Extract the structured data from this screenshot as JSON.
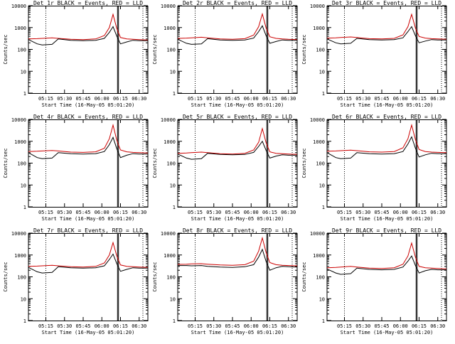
{
  "chart_data": [
    {
      "type": "line",
      "title": "Det 1r BLACK = Events, RED = LLD",
      "xlabel": "Start Time (16-May-05 05:01:20)",
      "ylabel": "Counts/sec",
      "yscale": "log",
      "ylim": [
        1,
        10000
      ],
      "x_ticks": [
        "05:15",
        "05:30",
        "05:45",
        "06:00",
        "06:15",
        "06:30"
      ],
      "y_ticks": [
        "1",
        "10",
        "100",
        "1000",
        "10000"
      ],
      "legend": "none",
      "grid": "off",
      "x": [
        "05:01",
        "05:08",
        "05:12",
        "05:20",
        "05:25",
        "05:35",
        "05:45",
        "05:55",
        "06:02",
        "06:06",
        "06:09",
        "06:12",
        "06:15",
        "06:20",
        "06:25",
        "06:30",
        "06:37"
      ],
      "series": [
        {
          "color": "#cc0000",
          "values": [
            300,
            310,
            320,
            340,
            320,
            290,
            280,
            300,
            430,
            1000,
            4000,
            900,
            350,
            300,
            290,
            280,
            270
          ]
        },
        {
          "color": "#000000",
          "values": [
            280,
            180,
            160,
            170,
            300,
            260,
            250,
            260,
            320,
            600,
            1100,
            400,
            180,
            220,
            260,
            250,
            250
          ]
        }
      ]
    },
    {
      "type": "line",
      "title": "Det 2r BLACK = Events, RED = LLD",
      "xlabel": "Start Time (16-May-05 05:01:20)",
      "ylabel": "Counts/sec",
      "yscale": "log",
      "ylim": [
        1,
        10000
      ],
      "x_ticks": [
        "05:15",
        "05:30",
        "05:45",
        "06:00",
        "06:15",
        "06:30"
      ],
      "y_ticks": [
        "1",
        "10",
        "100",
        "1000",
        "10000"
      ],
      "legend": "none",
      "grid": "off",
      "x": [
        "05:01",
        "05:08",
        "05:12",
        "05:20",
        "05:25",
        "05:35",
        "05:45",
        "05:55",
        "06:02",
        "06:06",
        "06:09",
        "06:12",
        "06:15",
        "06:20",
        "06:25",
        "06:30",
        "06:37"
      ],
      "series": [
        {
          "color": "#cc0000",
          "values": [
            320,
            330,
            340,
            360,
            340,
            300,
            290,
            310,
            450,
            1100,
            4200,
            950,
            380,
            320,
            300,
            290,
            280
          ]
        },
        {
          "color": "#000000",
          "values": [
            290,
            190,
            170,
            180,
            310,
            270,
            260,
            270,
            330,
            650,
            1200,
            420,
            190,
            230,
            270,
            260,
            260
          ]
        }
      ]
    },
    {
      "type": "line",
      "title": "Det 3r BLACK = Events, RED = LLD",
      "xlabel": "Start Time (16-May-05 05:01:20)",
      "ylabel": "Counts/sec",
      "yscale": "log",
      "ylim": [
        1,
        10000
      ],
      "x_ticks": [
        "05:15",
        "05:30",
        "05:45",
        "06:00",
        "06:15",
        "06:30"
      ],
      "y_ticks": [
        "1",
        "10",
        "100",
        "1000",
        "10000"
      ],
      "legend": "none",
      "grid": "off",
      "x": [
        "05:01",
        "05:08",
        "05:12",
        "05:20",
        "05:25",
        "05:35",
        "05:45",
        "05:55",
        "06:02",
        "06:06",
        "06:09",
        "06:12",
        "06:15",
        "06:20",
        "06:25",
        "06:30",
        "06:37"
      ],
      "series": [
        {
          "color": "#cc0000",
          "values": [
            330,
            340,
            350,
            370,
            350,
            310,
            300,
            320,
            460,
            1100,
            4000,
            950,
            390,
            330,
            310,
            300,
            290
          ]
        },
        {
          "color": "#000000",
          "values": [
            300,
            200,
            180,
            190,
            320,
            280,
            270,
            280,
            340,
            650,
            1100,
            420,
            200,
            240,
            280,
            270,
            270
          ]
        }
      ]
    },
    {
      "type": "line",
      "title": "Det 4r BLACK = Events, RED = LLD",
      "xlabel": "Start Time (16-May-05 05:01:20)",
      "ylabel": "Counts/sec",
      "yscale": "log",
      "ylim": [
        1,
        10000
      ],
      "x_ticks": [
        "05:15",
        "05:30",
        "05:45",
        "06:00",
        "06:15",
        "06:30"
      ],
      "y_ticks": [
        "1",
        "10",
        "100",
        "1000",
        "10000"
      ],
      "legend": "none",
      "grid": "off",
      "x": [
        "05:01",
        "05:08",
        "05:12",
        "05:20",
        "05:25",
        "05:35",
        "05:45",
        "05:55",
        "06:02",
        "06:06",
        "06:09",
        "06:12",
        "06:15",
        "06:20",
        "06:25",
        "06:30",
        "06:37"
      ],
      "series": [
        {
          "color": "#cc0000",
          "values": [
            340,
            350,
            360,
            380,
            360,
            320,
            310,
            330,
            480,
            1300,
            5500,
            1100,
            400,
            330,
            310,
            300,
            290
          ]
        },
        {
          "color": "#000000",
          "values": [
            300,
            180,
            160,
            170,
            300,
            270,
            260,
            270,
            340,
            700,
            1500,
            450,
            180,
            230,
            270,
            260,
            260
          ]
        }
      ]
    },
    {
      "type": "line",
      "title": "Det 5r BLACK = Events, RED = LLD",
      "xlabel": "Start Time (16-May-05 05:01:20)",
      "ylabel": "Counts/sec",
      "yscale": "log",
      "ylim": [
        1,
        10000
      ],
      "x_ticks": [
        "05:15",
        "05:30",
        "05:45",
        "06:00",
        "06:15",
        "06:30"
      ],
      "y_ticks": [
        "1",
        "10",
        "100",
        "1000",
        "10000"
      ],
      "legend": "none",
      "grid": "off",
      "x": [
        "05:01",
        "05:08",
        "05:12",
        "05:20",
        "05:25",
        "05:35",
        "05:45",
        "05:55",
        "06:02",
        "06:06",
        "06:09",
        "06:12",
        "06:15",
        "06:20",
        "06:25",
        "06:30",
        "06:37"
      ],
      "series": [
        {
          "color": "#cc0000",
          "values": [
            280,
            290,
            300,
            320,
            300,
            270,
            260,
            280,
            400,
            900,
            3800,
            850,
            330,
            280,
            270,
            260,
            250
          ]
        },
        {
          "color": "#000000",
          "values": [
            260,
            170,
            150,
            160,
            280,
            250,
            240,
            250,
            310,
            580,
            1000,
            380,
            170,
            210,
            240,
            230,
            230
          ]
        }
      ]
    },
    {
      "type": "line",
      "title": "Det 6r BLACK = Events, RED = LLD",
      "xlabel": "Start Time (16-May-05 05:01:20)",
      "ylabel": "Counts/sec",
      "yscale": "log",
      "ylim": [
        1,
        10000
      ],
      "x_ticks": [
        "05:15",
        "05:30",
        "05:45",
        "06:00",
        "06:15",
        "06:30"
      ],
      "y_ticks": [
        "1",
        "10",
        "100",
        "1000",
        "10000"
      ],
      "legend": "none",
      "grid": "off",
      "x": [
        "05:01",
        "05:08",
        "05:12",
        "05:20",
        "05:25",
        "05:35",
        "05:45",
        "05:55",
        "06:02",
        "06:06",
        "06:09",
        "06:12",
        "06:15",
        "06:20",
        "06:25",
        "06:30",
        "06:37"
      ],
      "series": [
        {
          "color": "#cc0000",
          "values": [
            350,
            360,
            370,
            390,
            370,
            330,
            320,
            340,
            500,
            1300,
            5500,
            1200,
            420,
            340,
            320,
            310,
            300
          ]
        },
        {
          "color": "#000000",
          "values": [
            300,
            180,
            160,
            170,
            300,
            270,
            260,
            270,
            340,
            750,
            1600,
            480,
            190,
            240,
            280,
            270,
            270
          ]
        }
      ]
    },
    {
      "type": "line",
      "title": "Det 7r BLACK = Events, RED = LLD",
      "xlabel": "Start Time (16-May-05 05:01:20)",
      "ylabel": "Counts/sec",
      "yscale": "log",
      "ylim": [
        1,
        10000
      ],
      "x_ticks": [
        "05:15",
        "05:30",
        "05:45",
        "06:00",
        "06:15",
        "06:30"
      ],
      "y_ticks": [
        "1",
        "10",
        "100",
        "1000",
        "10000"
      ],
      "legend": "none",
      "grid": "off",
      "x": [
        "05:01",
        "05:08",
        "05:12",
        "05:20",
        "05:25",
        "05:35",
        "05:45",
        "05:55",
        "06:02",
        "06:06",
        "06:09",
        "06:12",
        "06:15",
        "06:20",
        "06:25",
        "06:30",
        "06:37"
      ],
      "series": [
        {
          "color": "#cc0000",
          "values": [
            300,
            310,
            320,
            340,
            320,
            290,
            280,
            300,
            430,
            1000,
            3700,
            900,
            350,
            300,
            290,
            280,
            270
          ]
        },
        {
          "color": "#000000",
          "values": [
            270,
            170,
            150,
            160,
            290,
            260,
            250,
            260,
            320,
            620,
            1100,
            400,
            180,
            220,
            260,
            250,
            250
          ]
        }
      ]
    },
    {
      "type": "line",
      "title": "Det 8r BLACK = Events, RED = LLD",
      "xlabel": "Start Time (16-May-05 05:01:20)",
      "ylabel": "Counts/sec",
      "yscale": "log",
      "ylim": [
        1,
        10000
      ],
      "x_ticks": [
        "05:15",
        "05:30",
        "05:45",
        "06:00",
        "06:15",
        "06:30"
      ],
      "y_ticks": [
        "1",
        "10",
        "100",
        "1000",
        "10000"
      ],
      "legend": "none",
      "grid": "off",
      "x": [
        "05:01",
        "05:08",
        "05:12",
        "05:20",
        "05:25",
        "05:35",
        "05:45",
        "05:55",
        "06:02",
        "06:06",
        "06:09",
        "06:12",
        "06:15",
        "06:20",
        "06:25",
        "06:30",
        "06:37"
      ],
      "series": [
        {
          "color": "#cc0000",
          "values": [
            370,
            380,
            390,
            400,
            380,
            350,
            340,
            360,
            520,
            1500,
            6000,
            1300,
            450,
            360,
            340,
            330,
            320
          ]
        },
        {
          "color": "#000000",
          "values": [
            330,
            330,
            320,
            330,
            300,
            280,
            270,
            290,
            360,
            800,
            1800,
            500,
            200,
            260,
            300,
            290,
            280
          ]
        }
      ]
    },
    {
      "type": "line",
      "title": "Det 9r BLACK = Events, RED = LLD",
      "xlabel": "Start Time (16-May-05 05:01:20)",
      "ylabel": "Counts/sec",
      "yscale": "log",
      "ylim": [
        1,
        10000
      ],
      "x_ticks": [
        "05:15",
        "05:30",
        "05:45",
        "06:00",
        "06:15",
        "06:30"
      ],
      "y_ticks": [
        "1",
        "10",
        "100",
        "1000",
        "10000"
      ],
      "legend": "none",
      "grid": "off",
      "x": [
        "05:01",
        "05:08",
        "05:12",
        "05:20",
        "05:25",
        "05:35",
        "05:45",
        "05:55",
        "06:02",
        "06:06",
        "06:09",
        "06:12",
        "06:15",
        "06:20",
        "06:25",
        "06:30",
        "06:37"
      ],
      "series": [
        {
          "color": "#cc0000",
          "values": [
            260,
            270,
            280,
            300,
            280,
            250,
            240,
            260,
            380,
            900,
            3500,
            800,
            300,
            260,
            250,
            240,
            230
          ]
        },
        {
          "color": "#000000",
          "values": [
            230,
            150,
            130,
            140,
            250,
            220,
            210,
            220,
            280,
            520,
            900,
            330,
            150,
            190,
            220,
            210,
            210
          ]
        }
      ]
    }
  ]
}
